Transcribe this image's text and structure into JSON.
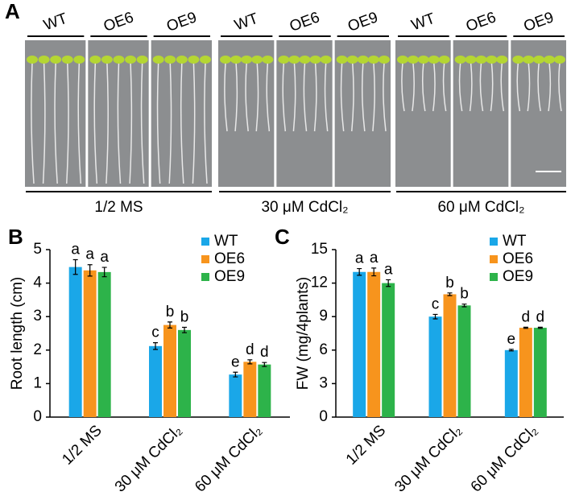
{
  "panel_a": {
    "label": "A",
    "groups": [
      {
        "treatment": "1/2 MS",
        "genotypes": [
          "WT",
          "OE6",
          "OE9"
        ]
      },
      {
        "treatment": "30 μM CdCl₂",
        "genotypes": [
          "WT",
          "OE6",
          "OE9"
        ]
      },
      {
        "treatment": "60 μM CdCl₂",
        "genotypes": [
          "WT",
          "OE6",
          "OE9"
        ]
      }
    ]
  },
  "chart_data": [
    {
      "type": "bar",
      "panel_label": "B",
      "y_label": "Root length (cm)",
      "categories": [
        "1/2 MS",
        "30 μM CdCl₂",
        "60 μM CdCl₂"
      ],
      "ylim": [
        0,
        5
      ],
      "yticks": [
        0,
        1,
        2,
        3,
        4,
        5
      ],
      "legend": "upper right",
      "series": [
        {
          "name": "WT",
          "color": "#1aa7e8",
          "values": [
            4.48,
            2.12,
            1.27
          ],
          "errors": [
            0.22,
            0.1,
            0.07
          ],
          "letters": [
            "a",
            "c",
            "e"
          ]
        },
        {
          "name": "OE6",
          "color": "#f7941d",
          "values": [
            4.38,
            2.75,
            1.65
          ],
          "errors": [
            0.17,
            0.09,
            0.06
          ],
          "letters": [
            "a",
            "b",
            "d"
          ]
        },
        {
          "name": "OE9",
          "color": "#2db34a",
          "values": [
            4.33,
            2.6,
            1.57
          ],
          "errors": [
            0.14,
            0.08,
            0.06
          ],
          "letters": [
            "a",
            "b",
            "d"
          ]
        }
      ]
    },
    {
      "type": "bar",
      "panel_label": "C",
      "y_label": "FW (mg/4plants)",
      "categories": [
        "1/2 MS",
        "30 μM CdCl₂",
        "60 μM CdCl₂"
      ],
      "ylim": [
        0,
        15
      ],
      "yticks": [
        0,
        3,
        6,
        9,
        12,
        15
      ],
      "legend": "upper right",
      "series": [
        {
          "name": "WT",
          "color": "#1aa7e8",
          "values": [
            13,
            9,
            6
          ],
          "errors": [
            0.3,
            0.2,
            0.07
          ],
          "letters": [
            "a",
            "c",
            "e"
          ]
        },
        {
          "name": "OE6",
          "color": "#f7941d",
          "values": [
            13,
            11,
            8
          ],
          "errors": [
            0.35,
            0.12,
            0.05
          ],
          "letters": [
            "a",
            "b",
            "d"
          ]
        },
        {
          "name": "OE9",
          "color": "#2db34a",
          "values": [
            12,
            10,
            8
          ],
          "errors": [
            0.3,
            0.12,
            0.05
          ],
          "letters": [
            "a",
            "b",
            "d"
          ]
        }
      ]
    }
  ]
}
